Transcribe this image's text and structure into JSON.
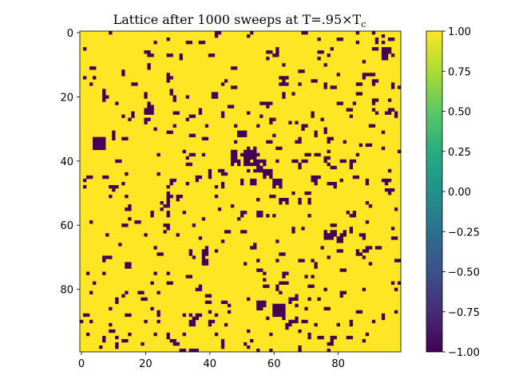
{
  "chart_data": {
    "type": "heatmap",
    "title": "Lattice after 1000 sweeps at T=.95×T",
    "title_subscript": "c",
    "rows": 100,
    "cols": 100,
    "x_ticks": [
      0,
      20,
      40,
      60,
      80
    ],
    "y_ticks": [
      0,
      20,
      40,
      60,
      80
    ],
    "colorbar": {
      "range": [
        -1.0,
        1.0
      ],
      "ticks": [
        "1.00",
        "0.75",
        "0.50",
        "0.25",
        "0.00",
        "−0.25",
        "−0.50",
        "−0.75",
        "−1.00"
      ],
      "tick_values": [
        1.0,
        0.75,
        0.5,
        0.25,
        0.0,
        -0.25,
        -0.5,
        -0.75,
        -1.0
      ],
      "colormap": "viridis"
    },
    "value_spin_up": 1,
    "value_spin_down": -1,
    "colors": {
      "spin_up": "#fde725",
      "spin_down": "#440154"
    },
    "spin_down_clusters": [
      {
        "row": 37,
        "col": 51,
        "size": 5
      },
      {
        "row": 40,
        "col": 54,
        "size": 4
      },
      {
        "row": 43,
        "col": 57,
        "size": 3
      },
      {
        "row": 39,
        "col": 47,
        "size": 3
      },
      {
        "row": 46,
        "col": 60,
        "size": 3
      },
      {
        "row": 33,
        "col": 4,
        "size": 4
      },
      {
        "row": 85,
        "col": 60,
        "size": 4
      },
      {
        "row": 83,
        "col": 65,
        "size": 3
      },
      {
        "row": 84,
        "col": 55,
        "size": 3
      },
      {
        "row": 62,
        "col": 76,
        "size": 3
      },
      {
        "row": 64,
        "col": 80,
        "size": 2
      },
      {
        "row": 23,
        "col": 20,
        "size": 3
      },
      {
        "row": 14,
        "col": 62,
        "size": 3
      },
      {
        "row": 19,
        "col": 41,
        "size": 2
      },
      {
        "row": 10,
        "col": 47,
        "size": 2
      },
      {
        "row": 7,
        "col": 94,
        "size": 2
      },
      {
        "row": 56,
        "col": 55,
        "size": 2
      },
      {
        "row": 95,
        "col": 78,
        "size": 2
      },
      {
        "row": 50,
        "col": 27,
        "size": 2
      },
      {
        "row": 70,
        "col": 7,
        "size": 2
      },
      {
        "row": 88,
        "col": 35,
        "size": 2
      },
      {
        "row": 61,
        "col": 26,
        "size": 2
      },
      {
        "row": 31,
        "col": 50,
        "size": 2
      },
      {
        "row": 72,
        "col": 14,
        "size": 2
      }
    ],
    "random_spin_down_density": 0.045,
    "random_seed": 1000
  }
}
